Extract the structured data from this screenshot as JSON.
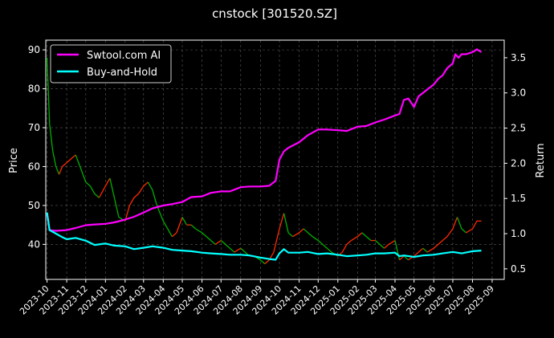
{
  "chart_data": {
    "type": "line",
    "title": "cnstock [301520.SZ]",
    "xlabel": "",
    "ylabel": "Price",
    "y2label": "Return",
    "grid": true,
    "legend": "top-left",
    "x_ticks": [
      "2023-10",
      "2023-11",
      "2023-12",
      "2024-01",
      "2024-02",
      "2024-03",
      "2024-04",
      "2024-05",
      "2024-06",
      "2024-07",
      "2024-08",
      "2024-09",
      "2024-10",
      "2024-11",
      "2024-12",
      "2025-01",
      "2025-02",
      "2025-03",
      "2025-04",
      "2025-05",
      "2025-06",
      "2025-07",
      "2025-08",
      "2025-09"
    ],
    "xlim": [
      "2023-09-29",
      "2025-09-20"
    ],
    "price_axis": {
      "ylim": [
        31,
        92.5
      ],
      "ticks": [
        40,
        50,
        60,
        70,
        80,
        90
      ]
    },
    "return_axis": {
      "ylim": [
        0.35,
        3.75
      ],
      "ticks": [
        0.5,
        1.0,
        1.5,
        2.0,
        2.5,
        3.0,
        3.5
      ]
    },
    "price_series": {
      "name": "Price",
      "color_up": "#ff2a00",
      "color_down": "#00b000",
      "points": [
        [
          "2023-10-01",
          88
        ],
        [
          "2023-10-05",
          71
        ],
        [
          "2023-10-10",
          64
        ],
        [
          "2023-10-15",
          60
        ],
        [
          "2023-10-20",
          58
        ],
        [
          "2023-10-25",
          60
        ],
        [
          "2023-11-01",
          61
        ],
        [
          "2023-11-08",
          62
        ],
        [
          "2023-11-15",
          63
        ],
        [
          "2023-11-22",
          60
        ],
        [
          "2023-12-01",
          56
        ],
        [
          "2023-12-08",
          55
        ],
        [
          "2023-12-15",
          53
        ],
        [
          "2023-12-22",
          52
        ],
        [
          "2024-01-01",
          55
        ],
        [
          "2024-01-08",
          57
        ],
        [
          "2024-01-15",
          52
        ],
        [
          "2024-01-22",
          47
        ],
        [
          "2024-02-01",
          46
        ],
        [
          "2024-02-08",
          50
        ],
        [
          "2024-02-15",
          52
        ],
        [
          "2024-02-22",
          53
        ],
        [
          "2024-03-01",
          55
        ],
        [
          "2024-03-08",
          56
        ],
        [
          "2024-03-15",
          54
        ],
        [
          "2024-03-22",
          50
        ],
        [
          "2024-04-01",
          46
        ],
        [
          "2024-04-08",
          44
        ],
        [
          "2024-04-15",
          42
        ],
        [
          "2024-04-22",
          43
        ],
        [
          "2024-05-01",
          47
        ],
        [
          "2024-05-08",
          45
        ],
        [
          "2024-05-15",
          45
        ],
        [
          "2024-05-22",
          44
        ],
        [
          "2024-06-01",
          43
        ],
        [
          "2024-06-08",
          42
        ],
        [
          "2024-06-15",
          41
        ],
        [
          "2024-06-22",
          40
        ],
        [
          "2024-07-01",
          41
        ],
        [
          "2024-07-08",
          40
        ],
        [
          "2024-07-15",
          39
        ],
        [
          "2024-07-22",
          38
        ],
        [
          "2024-08-01",
          39
        ],
        [
          "2024-08-08",
          38
        ],
        [
          "2024-08-15",
          37
        ],
        [
          "2024-08-22",
          37
        ],
        [
          "2024-09-01",
          36
        ],
        [
          "2024-09-08",
          35
        ],
        [
          "2024-09-15",
          36
        ],
        [
          "2024-09-22",
          38
        ],
        [
          "2024-10-01",
          44
        ],
        [
          "2024-10-08",
          48
        ],
        [
          "2024-10-15",
          43
        ],
        [
          "2024-10-22",
          42
        ],
        [
          "2024-11-01",
          43
        ],
        [
          "2024-11-08",
          44
        ],
        [
          "2024-11-15",
          43
        ],
        [
          "2024-11-22",
          42
        ],
        [
          "2024-12-01",
          41
        ],
        [
          "2024-12-08",
          40
        ],
        [
          "2024-12-15",
          39
        ],
        [
          "2024-12-22",
          38
        ],
        [
          "2025-01-01",
          37
        ],
        [
          "2025-01-08",
          38
        ],
        [
          "2025-01-15",
          40
        ],
        [
          "2025-01-22",
          41
        ],
        [
          "2025-02-01",
          42
        ],
        [
          "2025-02-08",
          43
        ],
        [
          "2025-02-15",
          42
        ],
        [
          "2025-02-22",
          41
        ],
        [
          "2025-03-01",
          41
        ],
        [
          "2025-03-08",
          40
        ],
        [
          "2025-03-15",
          39
        ],
        [
          "2025-03-22",
          40
        ],
        [
          "2025-04-01",
          41
        ],
        [
          "2025-04-08",
          36
        ],
        [
          "2025-04-15",
          37
        ],
        [
          "2025-04-22",
          36
        ],
        [
          "2025-05-01",
          37
        ],
        [
          "2025-05-08",
          38
        ],
        [
          "2025-05-15",
          39
        ],
        [
          "2025-05-22",
          38
        ],
        [
          "2025-06-01",
          39
        ],
        [
          "2025-06-08",
          40
        ],
        [
          "2025-06-15",
          41
        ],
        [
          "2025-06-22",
          42
        ],
        [
          "2025-07-01",
          44
        ],
        [
          "2025-07-08",
          47
        ],
        [
          "2025-07-15",
          44
        ],
        [
          "2025-07-22",
          43
        ],
        [
          "2025-08-01",
          44
        ],
        [
          "2025-08-08",
          46
        ],
        [
          "2025-08-15",
          46
        ]
      ]
    },
    "series": [
      {
        "name": "Swtool.com AI",
        "axis": "return",
        "color": "#ff00ff",
        "points": [
          [
            "2023-10-01",
            1.28
          ],
          [
            "2023-10-05",
            1.05
          ],
          [
            "2023-10-15",
            1.04
          ],
          [
            "2023-11-01",
            1.05
          ],
          [
            "2023-11-15",
            1.08
          ],
          [
            "2023-12-01",
            1.12
          ],
          [
            "2023-12-15",
            1.13
          ],
          [
            "2024-01-01",
            1.14
          ],
          [
            "2024-01-15",
            1.16
          ],
          [
            "2024-02-01",
            1.2
          ],
          [
            "2024-02-15",
            1.24
          ],
          [
            "2024-03-01",
            1.3
          ],
          [
            "2024-03-15",
            1.36
          ],
          [
            "2024-04-01",
            1.4
          ],
          [
            "2024-04-15",
            1.42
          ],
          [
            "2024-05-01",
            1.45
          ],
          [
            "2024-05-15",
            1.52
          ],
          [
            "2024-06-01",
            1.53
          ],
          [
            "2024-06-15",
            1.58
          ],
          [
            "2024-07-01",
            1.6
          ],
          [
            "2024-07-15",
            1.6
          ],
          [
            "2024-08-01",
            1.66
          ],
          [
            "2024-08-15",
            1.67
          ],
          [
            "2024-09-01",
            1.67
          ],
          [
            "2024-09-15",
            1.68
          ],
          [
            "2024-09-25",
            1.75
          ],
          [
            "2024-10-01",
            2.05
          ],
          [
            "2024-10-08",
            2.17
          ],
          [
            "2024-10-15",
            2.22
          ],
          [
            "2024-11-01",
            2.3
          ],
          [
            "2024-11-15",
            2.4
          ],
          [
            "2024-12-01",
            2.48
          ],
          [
            "2024-12-15",
            2.48
          ],
          [
            "2025-01-01",
            2.47
          ],
          [
            "2025-01-15",
            2.46
          ],
          [
            "2025-02-01",
            2.52
          ],
          [
            "2025-02-15",
            2.53
          ],
          [
            "2025-03-01",
            2.58
          ],
          [
            "2025-03-15",
            2.62
          ],
          [
            "2025-04-01",
            2.68
          ],
          [
            "2025-04-08",
            2.7
          ],
          [
            "2025-04-15",
            2.9
          ],
          [
            "2025-04-22",
            2.92
          ],
          [
            "2025-05-01",
            2.8
          ],
          [
            "2025-05-08",
            2.95
          ],
          [
            "2025-05-15",
            3.0
          ],
          [
            "2025-05-22",
            3.05
          ],
          [
            "2025-06-01",
            3.12
          ],
          [
            "2025-06-08",
            3.2
          ],
          [
            "2025-06-15",
            3.25
          ],
          [
            "2025-06-22",
            3.35
          ],
          [
            "2025-07-01",
            3.42
          ],
          [
            "2025-07-05",
            3.55
          ],
          [
            "2025-07-10",
            3.5
          ],
          [
            "2025-07-15",
            3.55
          ],
          [
            "2025-07-22",
            3.55
          ],
          [
            "2025-08-01",
            3.58
          ],
          [
            "2025-08-08",
            3.62
          ],
          [
            "2025-08-15",
            3.58
          ]
        ]
      },
      {
        "name": "Buy-and-Hold",
        "axis": "return",
        "color": "#00ffff",
        "points": [
          [
            "2023-10-01",
            1.3
          ],
          [
            "2023-10-05",
            1.05
          ],
          [
            "2023-10-15",
            1.0
          ],
          [
            "2023-10-25",
            0.95
          ],
          [
            "2023-11-01",
            0.92
          ],
          [
            "2023-11-15",
            0.94
          ],
          [
            "2023-12-01",
            0.9
          ],
          [
            "2023-12-15",
            0.84
          ],
          [
            "2024-01-01",
            0.86
          ],
          [
            "2024-01-15",
            0.83
          ],
          [
            "2024-02-01",
            0.82
          ],
          [
            "2024-02-15",
            0.78
          ],
          [
            "2024-03-01",
            0.8
          ],
          [
            "2024-03-15",
            0.82
          ],
          [
            "2024-04-01",
            0.8
          ],
          [
            "2024-04-15",
            0.77
          ],
          [
            "2024-05-01",
            0.76
          ],
          [
            "2024-05-15",
            0.75
          ],
          [
            "2024-06-01",
            0.73
          ],
          [
            "2024-06-15",
            0.72
          ],
          [
            "2024-07-01",
            0.71
          ],
          [
            "2024-07-15",
            0.7
          ],
          [
            "2024-08-01",
            0.7
          ],
          [
            "2024-08-15",
            0.69
          ],
          [
            "2024-09-01",
            0.66
          ],
          [
            "2024-09-15",
            0.64
          ],
          [
            "2024-09-25",
            0.63
          ],
          [
            "2024-10-01",
            0.72
          ],
          [
            "2024-10-08",
            0.78
          ],
          [
            "2024-10-15",
            0.73
          ],
          [
            "2024-11-01",
            0.73
          ],
          [
            "2024-11-15",
            0.74
          ],
          [
            "2024-12-01",
            0.71
          ],
          [
            "2024-12-15",
            0.72
          ],
          [
            "2025-01-01",
            0.7
          ],
          [
            "2025-01-15",
            0.68
          ],
          [
            "2025-02-01",
            0.69
          ],
          [
            "2025-02-15",
            0.7
          ],
          [
            "2025-03-01",
            0.72
          ],
          [
            "2025-03-15",
            0.72
          ],
          [
            "2025-04-01",
            0.73
          ],
          [
            "2025-04-08",
            0.68
          ],
          [
            "2025-04-15",
            0.69
          ],
          [
            "2025-05-01",
            0.67
          ],
          [
            "2025-05-15",
            0.69
          ],
          [
            "2025-06-01",
            0.7
          ],
          [
            "2025-06-15",
            0.72
          ],
          [
            "2025-07-01",
            0.74
          ],
          [
            "2025-07-15",
            0.72
          ],
          [
            "2025-08-01",
            0.75
          ],
          [
            "2025-08-15",
            0.76
          ]
        ]
      }
    ]
  }
}
